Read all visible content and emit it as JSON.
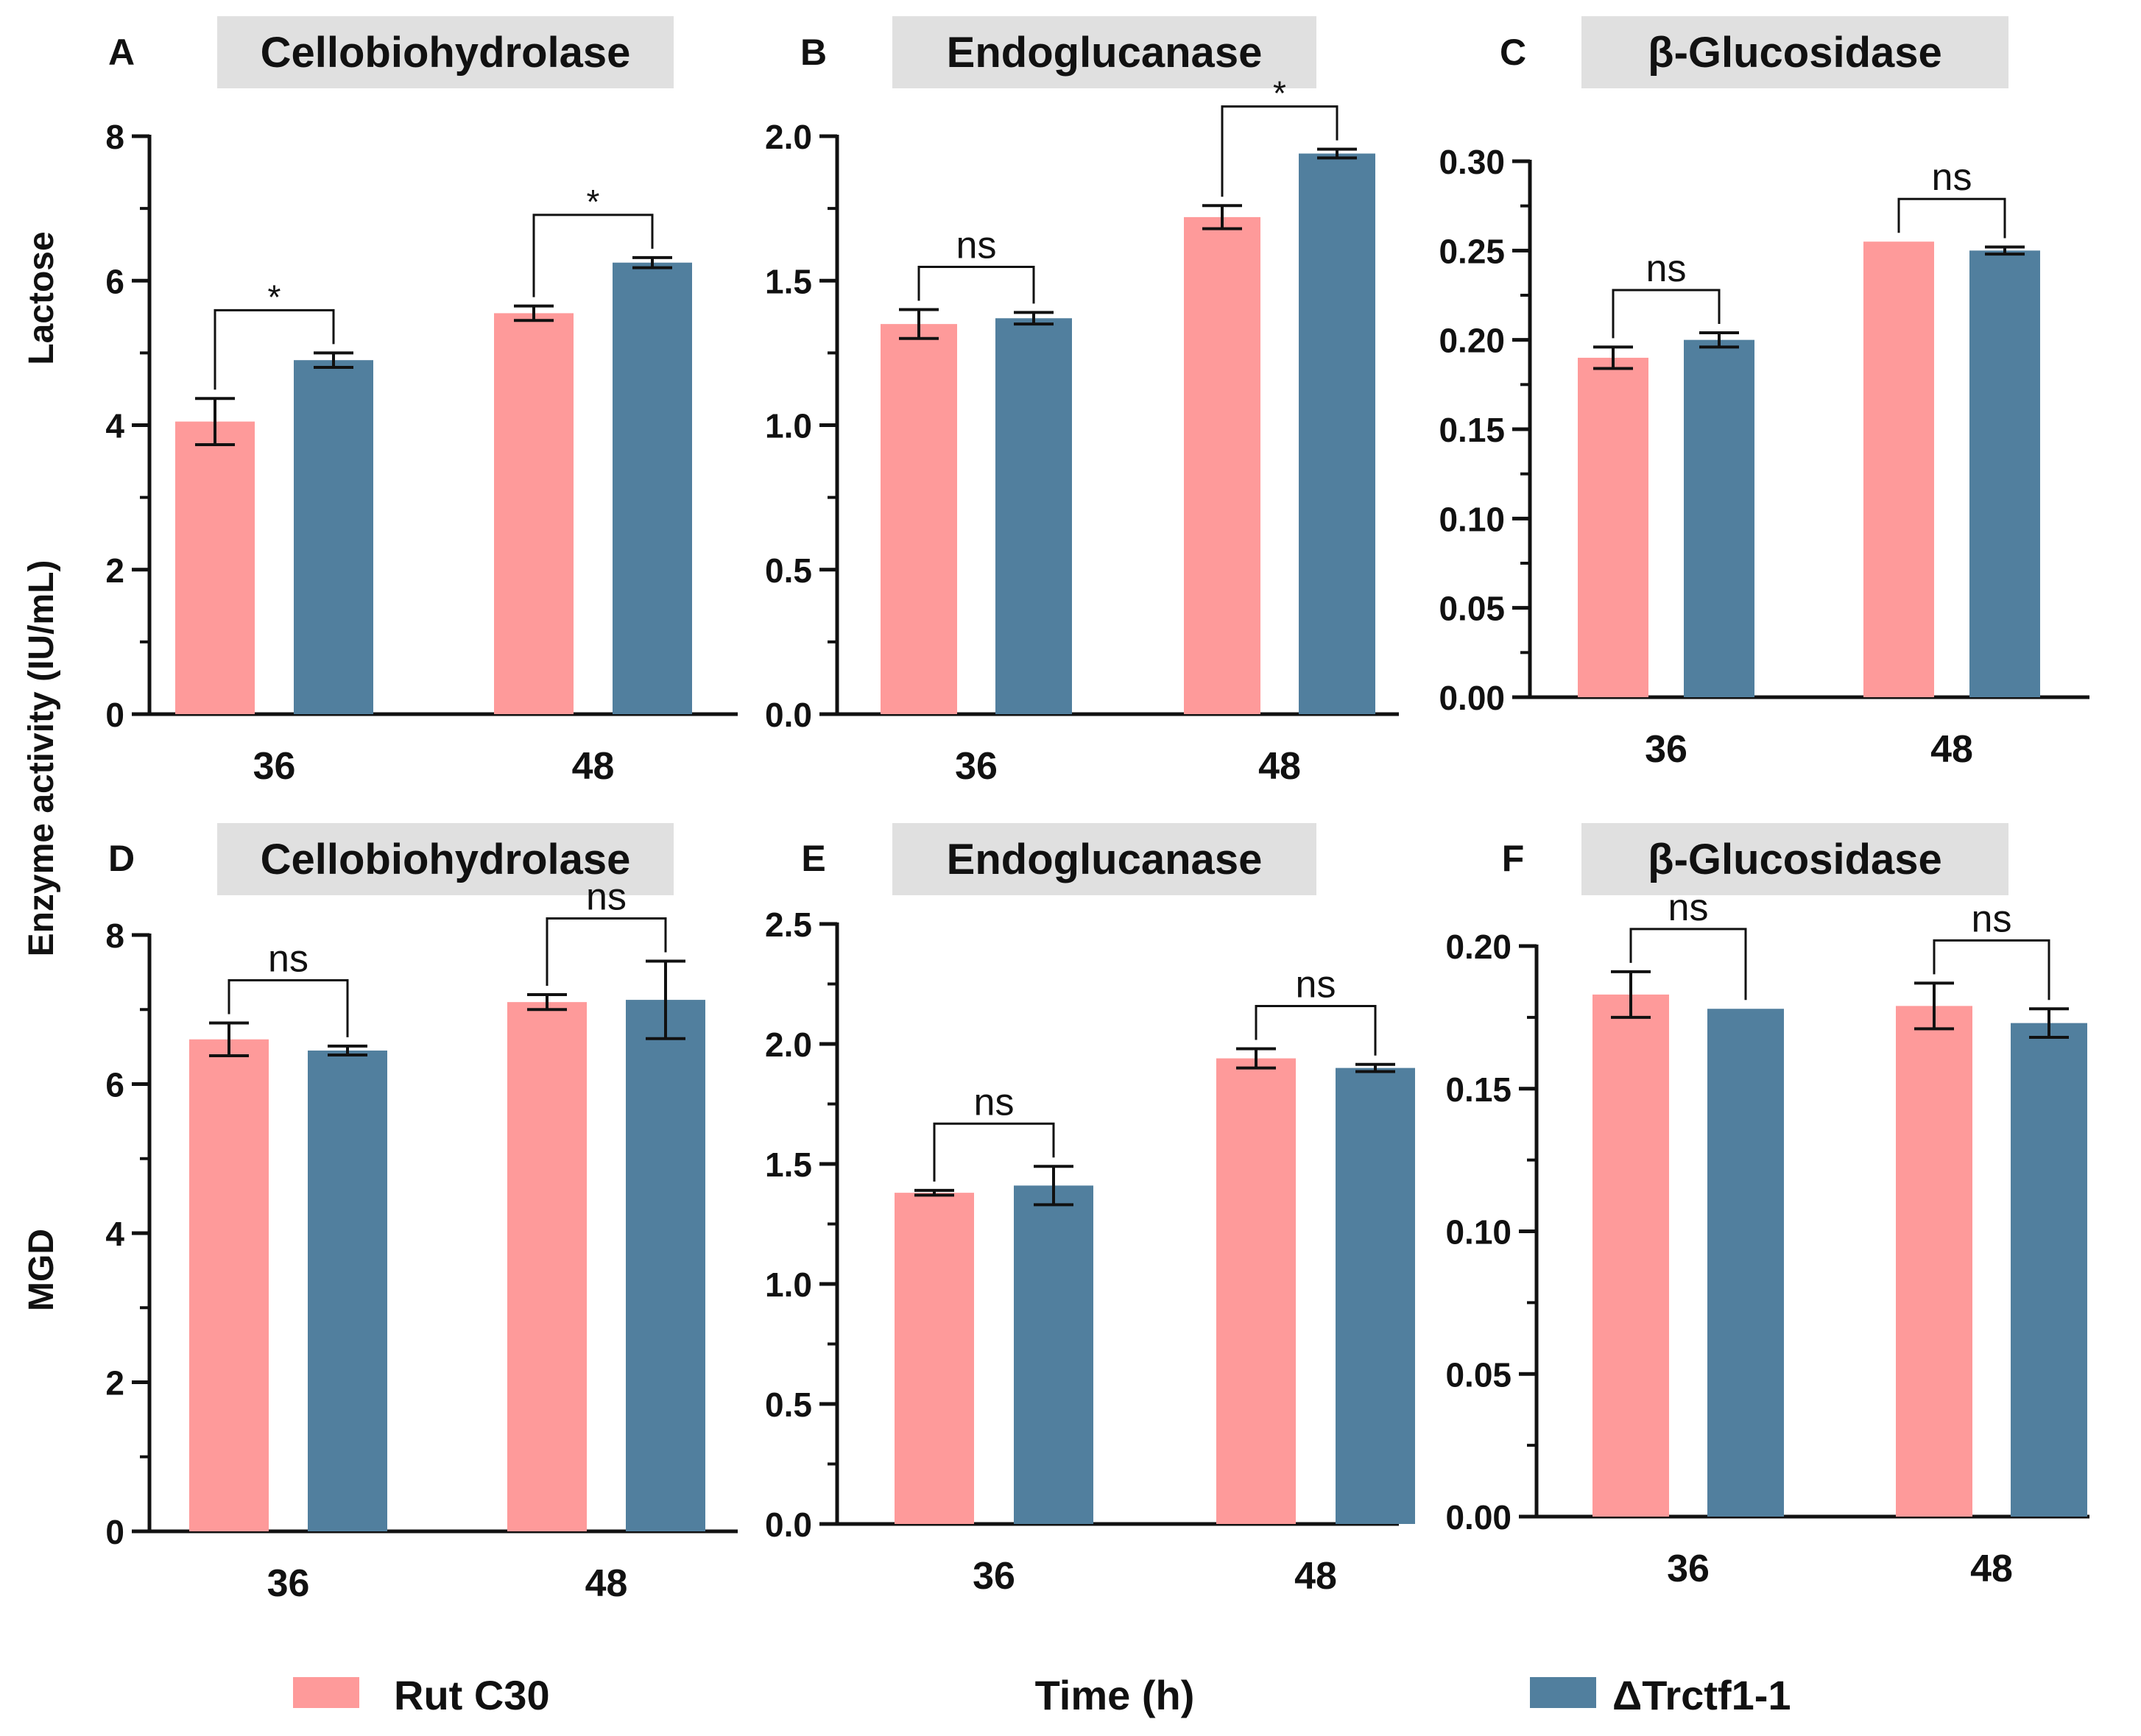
{
  "figure": {
    "y_axis_label": "Enzyme activity (IU/mL)",
    "x_axis_label": "Time (h)",
    "row_labels": [
      "Lactose",
      "MGD"
    ],
    "legend": [
      {
        "name": "Rut C30",
        "color": "#fe9a9a"
      },
      {
        "name": "ΔTrctf1-1",
        "color": "#517f9e"
      }
    ],
    "colors": {
      "panel_title_bg": "#e0e0e0",
      "axis": "#111111"
    }
  },
  "chart_data": [
    {
      "panel": "A",
      "type": "bar",
      "row": "Lactose",
      "title": "Cellobiohydrolase",
      "categories": [
        "36",
        "48"
      ],
      "ylim": [
        0,
        8
      ],
      "yticks": [
        0,
        2,
        4,
        6,
        8
      ],
      "ytick_labels": [
        "0",
        "2",
        "4",
        "6",
        "8"
      ],
      "series": [
        {
          "name": "Rut C30",
          "values": [
            4.05,
            5.55
          ],
          "errors": [
            0.32,
            0.1
          ]
        },
        {
          "name": "ΔTrctf1-1",
          "values": [
            4.9,
            6.25
          ],
          "errors": [
            0.1,
            0.07
          ]
        }
      ],
      "significance": [
        "*",
        "*"
      ]
    },
    {
      "panel": "B",
      "type": "bar",
      "row": "Lactose",
      "title": "Endoglucanase",
      "categories": [
        "36",
        "48"
      ],
      "ylim": [
        0,
        2
      ],
      "yticks": [
        0,
        0.5,
        1,
        1.5,
        2
      ],
      "ytick_labels": [
        "0.0",
        "0.5",
        "1.0",
        "1.5",
        "2.0"
      ],
      "series": [
        {
          "name": "Rut C30",
          "values": [
            1.35,
            1.72
          ],
          "errors": [
            0.05,
            0.04
          ]
        },
        {
          "name": "ΔTrctf1-1",
          "values": [
            1.37,
            1.94
          ],
          "errors": [
            0.02,
            0.015
          ]
        }
      ],
      "significance": [
        "ns",
        "*"
      ]
    },
    {
      "panel": "C",
      "type": "bar",
      "row": "Lactose",
      "title": "β-Glucosidase",
      "categories": [
        "36",
        "48"
      ],
      "ylim": [
        0,
        0.3
      ],
      "yticks": [
        0,
        0.05,
        0.1,
        0.15,
        0.2,
        0.25,
        0.3
      ],
      "ytick_labels": [
        "0.00",
        "0.05",
        "0.10",
        "0.15",
        "0.20",
        "0.25",
        "0.30"
      ],
      "series": [
        {
          "name": "Rut C30",
          "values": [
            0.19,
            0.255
          ],
          "errors": [
            0.006,
            0
          ]
        },
        {
          "name": "ΔTrctf1-1",
          "values": [
            0.2,
            0.25
          ],
          "errors": [
            0.004,
            0.002
          ]
        }
      ],
      "significance": [
        "ns",
        "ns"
      ]
    },
    {
      "panel": "D",
      "type": "bar",
      "row": "MGD",
      "title": "Cellobiohydrolase",
      "categories": [
        "36",
        "48"
      ],
      "ylim": [
        0,
        8
      ],
      "yticks": [
        0,
        2,
        4,
        6,
        8
      ],
      "ytick_labels": [
        "0",
        "2",
        "4",
        "6",
        "8"
      ],
      "series": [
        {
          "name": "Rut C30",
          "values": [
            6.6,
            7.1
          ],
          "errors": [
            0.22,
            0.1
          ]
        },
        {
          "name": "ΔTrctf1-1",
          "values": [
            6.45,
            7.13
          ],
          "errors": [
            0.06,
            0.52
          ]
        }
      ],
      "significance": [
        "ns",
        "ns"
      ]
    },
    {
      "panel": "E",
      "type": "bar",
      "row": "MGD",
      "title": "Endoglucanase",
      "categories": [
        "36",
        "48"
      ],
      "ylim": [
        0,
        2.5
      ],
      "yticks": [
        0,
        0.5,
        1,
        1.5,
        2,
        2.5
      ],
      "ytick_labels": [
        "0.0",
        "0.5",
        "1.0",
        "1.5",
        "2.0",
        "2.5"
      ],
      "series": [
        {
          "name": "Rut C30",
          "values": [
            1.38,
            1.94
          ],
          "errors": [
            0.01,
            0.04
          ]
        },
        {
          "name": "ΔTrctf1-1",
          "values": [
            1.41,
            1.9
          ],
          "errors": [
            0.08,
            0.015
          ]
        }
      ],
      "significance": [
        "ns",
        "ns"
      ]
    },
    {
      "panel": "F",
      "type": "bar",
      "row": "MGD",
      "title": "β-Glucosidase",
      "categories": [
        "36",
        "48"
      ],
      "ylim": [
        0,
        0.2
      ],
      "yticks": [
        0,
        0.05,
        0.1,
        0.15,
        0.2
      ],
      "ytick_labels": [
        "0.00",
        "0.05",
        "0.10",
        "0.15",
        "0.20"
      ],
      "series": [
        {
          "name": "Rut C30",
          "values": [
            0.183,
            0.179
          ],
          "errors": [
            0.008,
            0.008
          ]
        },
        {
          "name": "ΔTrctf1-1",
          "values": [
            0.178,
            0.173
          ],
          "errors": [
            0,
            0.005
          ]
        }
      ],
      "significance": [
        "ns",
        "ns"
      ]
    }
  ]
}
